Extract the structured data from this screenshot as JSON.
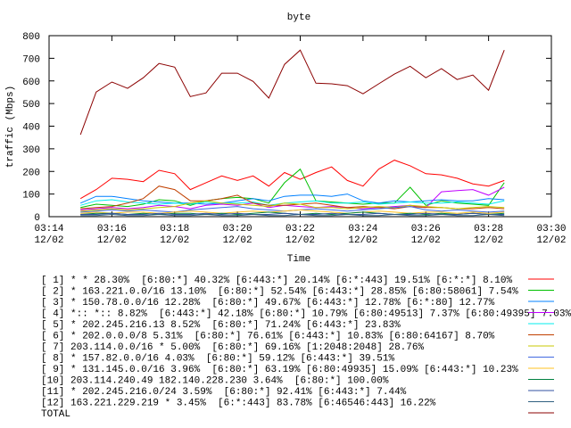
{
  "chart_data": {
    "type": "line",
    "title": "byte",
    "y_label": "traffic (Mbps)",
    "x_label": "Time",
    "x": [
      "03:15:00",
      "03:15:30",
      "03:16:00",
      "03:16:30",
      "03:17:00",
      "03:17:30",
      "03:18:00",
      "03:18:30",
      "03:19:00",
      "03:19:30",
      "03:20:00",
      "03:20:30",
      "03:21:00",
      "03:21:30",
      "03:22:00",
      "03:22:30",
      "03:23:00",
      "03:23:30",
      "03:24:00",
      "03:24:30",
      "03:25:00",
      "03:25:30",
      "03:26:00",
      "03:26:30",
      "03:27:00",
      "03:27:30",
      "03:28:00",
      "03:28:30"
    ],
    "xlim": [
      "03:14",
      "03:30"
    ],
    "xticks": [
      {
        "value": "03:14",
        "label": [
          "03:14",
          "12/02"
        ]
      },
      {
        "value": "03:16",
        "label": [
          "03:16",
          "12/02"
        ]
      },
      {
        "value": "03:18",
        "label": [
          "03:18",
          "12/02"
        ]
      },
      {
        "value": "03:20",
        "label": [
          "03:20",
          "12/02"
        ]
      },
      {
        "value": "03:22",
        "label": [
          "03:22",
          "12/02"
        ]
      },
      {
        "value": "03:24",
        "label": [
          "03:24",
          "12/02"
        ]
      },
      {
        "value": "03:26",
        "label": [
          "03:26",
          "12/02"
        ]
      },
      {
        "value": "03:28",
        "label": [
          "03:28",
          "12/02"
        ]
      },
      {
        "value": "03:30",
        "label": [
          "03:30",
          "12/02"
        ]
      }
    ],
    "ylim": [
      0,
      800
    ],
    "yticks": [
      0,
      100,
      200,
      300,
      400,
      500,
      600,
      700,
      800
    ],
    "series": [
      {
        "name": "[ 1] * * 28.30%  [6:80:*] 40.32% [6:443:*] 20.14% [6:*:443] 19.51% [6:*:*] 8.10%",
        "color": "#ff0000",
        "values": [
          80,
          120,
          170,
          165,
          155,
          205,
          190,
          120,
          150,
          180,
          160,
          180,
          135,
          195,
          165,
          195,
          220,
          160,
          135,
          210,
          250,
          225,
          190,
          185,
          170,
          145,
          135,
          160
        ]
      },
      {
        "name": "[ 2] * 163.221.0.0/16 13.10%  [6:80:*] 52.54% [6:443:*] 28.85% [6:80:58061] 7.54%",
        "color": "#00c000",
        "values": [
          40,
          55,
          50,
          45,
          55,
          75,
          70,
          50,
          70,
          80,
          85,
          80,
          60,
          150,
          210,
          70,
          65,
          60,
          55,
          60,
          60,
          130,
          50,
          70,
          60,
          55,
          50,
          150
        ]
      },
      {
        "name": "[ 3] * 150.78.0.0/16 12.28%  [6:80:*] 49.67% [6:443:*] 12.78% [6:*:80] 12.77%",
        "color": "#0080ff",
        "values": [
          60,
          90,
          90,
          80,
          70,
          65,
          60,
          60,
          55,
          60,
          70,
          80,
          70,
          90,
          95,
          95,
          90,
          100,
          70,
          60,
          70,
          65,
          70,
          75,
          70,
          70,
          80,
          75
        ]
      },
      {
        "name": "[ 4] *:: *:: 8.82%  [6:443:*] 42.18% [6:80:*] 10.79% [6:80:49513] 7.37% [6:80:49395] 7.03%",
        "color": "#c000ff",
        "values": [
          30,
          35,
          40,
          35,
          40,
          50,
          45,
          35,
          50,
          55,
          50,
          60,
          40,
          50,
          45,
          40,
          45,
          40,
          35,
          40,
          45,
          50,
          40,
          110,
          115,
          120,
          95,
          130
        ]
      },
      {
        "name": "[ 5] * 202.245.216.13 8.52%  [6:80:*] 71.24% [6:443:*] 23.83%",
        "color": "#00eeee",
        "values": [
          50,
          70,
          75,
          65,
          60,
          55,
          60,
          55,
          65,
          60,
          60,
          65,
          50,
          60,
          65,
          70,
          60,
          60,
          65,
          55,
          60,
          65,
          60,
          60,
          65,
          60,
          55,
          70
        ]
      },
      {
        "name": "[ 6] * 202.0.0.0/8 5.31%  [6:80:*] 76.61% [6:443:*] 10.83% [6:80:64167] 8.70%",
        "color": "#c04000",
        "values": [
          35,
          40,
          45,
          60,
          80,
          135,
          120,
          70,
          70,
          80,
          95,
          60,
          50,
          50,
          55,
          60,
          50,
          40,
          45,
          40,
          35,
          45,
          40,
          40,
          35,
          35,
          40,
          35
        ]
      },
      {
        "name": "[ 7] 203.114.0.0/16 * 5.00%  [6:80:*] 69.16% [1:2048:2048] 28.76%",
        "color": "#c8c800",
        "values": [
          25,
          30,
          35,
          30,
          35,
          40,
          45,
          60,
          70,
          60,
          55,
          50,
          45,
          60,
          55,
          40,
          40,
          35,
          40,
          45,
          40,
          50,
          45,
          40,
          35,
          40,
          45,
          40
        ]
      },
      {
        "name": "[ 8] * 157.82.0.0/16 4.03%  [6:80:*] 59.12% [6:443:*] 39.51%",
        "color": "#4169e1",
        "values": [
          20,
          25,
          30,
          25,
          30,
          25,
          20,
          30,
          35,
          40,
          45,
          35,
          30,
          25,
          30,
          35,
          30,
          25,
          30,
          35,
          40,
          45,
          30,
          25,
          30,
          25,
          20,
          25
        ]
      },
      {
        "name": "[ 9] * 131.145.0.0/16 3.96%  [6:80:*] 63.19% [6:80:49935] 15.09% [6:443:*] 10.23%",
        "color": "#ffc020",
        "values": [
          15,
          20,
          15,
          20,
          20,
          15,
          20,
          25,
          20,
          15,
          20,
          25,
          20,
          25,
          30,
          25,
          20,
          15,
          20,
          25,
          20,
          15,
          20,
          20,
          15,
          20,
          15,
          20
        ]
      },
      {
        "name": "[10] 203.114.240.49 182.140.228.230 3.64%  [6:80:*] 100.00%",
        "color": "#008040",
        "values": [
          10,
          15,
          15,
          10,
          15,
          10,
          15,
          15,
          10,
          15,
          10,
          15,
          20,
          15,
          10,
          15,
          10,
          15,
          20,
          15,
          10,
          15,
          10,
          15,
          10,
          15,
          10,
          15
        ]
      },
      {
        "name": "[11] * 202.245.216.0/24 3.59%  [6:80:*] 92.41% [6:443:*] 7.44%",
        "color": "#3050a0",
        "values": [
          10,
          10,
          15,
          10,
          10,
          15,
          10,
          10,
          15,
          10,
          15,
          10,
          10,
          15,
          10,
          10,
          15,
          10,
          10,
          15,
          10,
          10,
          15,
          10,
          10,
          15,
          10,
          10
        ]
      },
      {
        "name": "[12] 163.221.229.219 * 3.45%  [6:*:443] 83.78% [6:46546:443] 16.22%",
        "color": "#306080",
        "values": [
          5,
          5,
          10,
          5,
          5,
          10,
          5,
          5,
          10,
          5,
          5,
          10,
          5,
          5,
          10,
          5,
          5,
          10,
          5,
          5,
          10,
          5,
          5,
          10,
          5,
          5,
          10,
          5
        ]
      },
      {
        "name": "TOTAL",
        "color": "#8b0000",
        "values": [
          362,
          551,
          595,
          567,
          614,
          677,
          661,
          531,
          547,
          634,
          634,
          598,
          524,
          673,
          736,
          590,
          587,
          579,
          543,
          587,
          630,
          665,
          614,
          654,
          606,
          626,
          559,
          736
        ]
      }
    ]
  }
}
